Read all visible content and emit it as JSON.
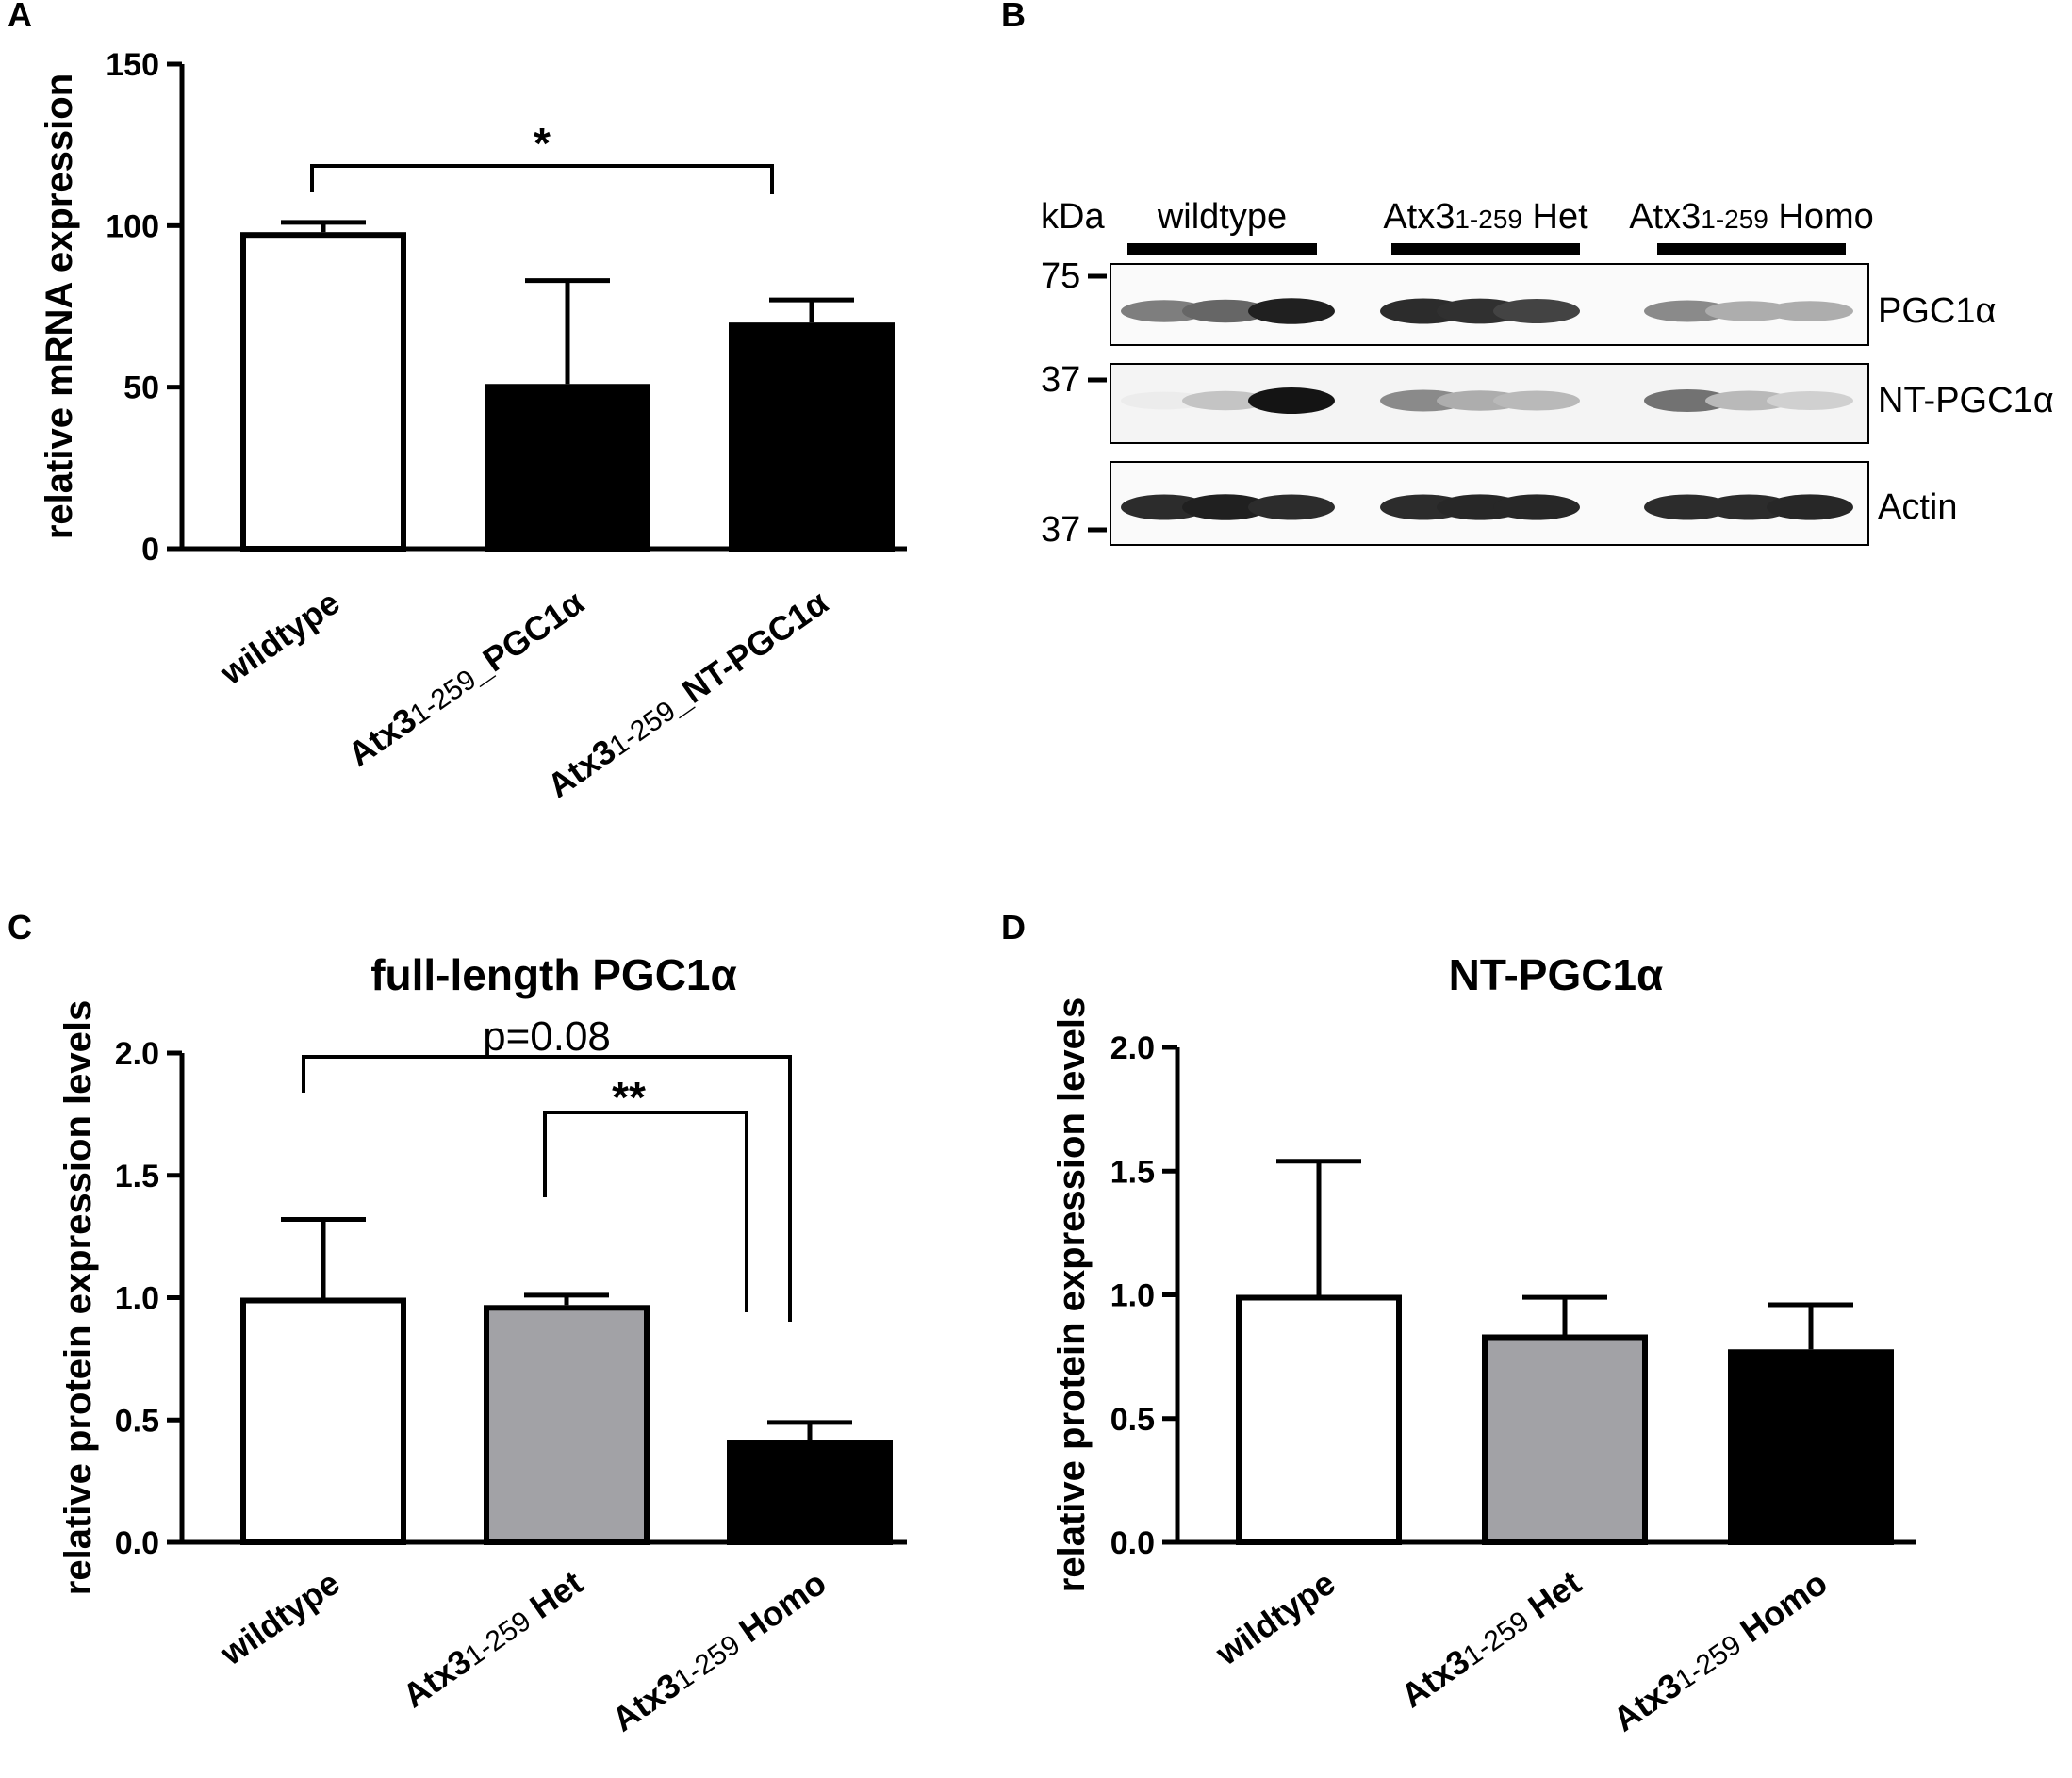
{
  "chart_data": [
    {
      "panel": "A",
      "type": "bar",
      "title": "",
      "ylabel": "relative mRNA expression",
      "ylim": [
        0,
        150
      ],
      "yticks": [
        "0",
        "50",
        "100",
        "150"
      ],
      "categories": [
        {
          "main": "wildtype",
          "sub": "",
          "suffix": ""
        },
        {
          "main": "Atx3",
          "sub": "1-259",
          "suffix": "_PGC1α"
        },
        {
          "main": "Atx3",
          "sub": "1-259",
          "suffix": "_NT-PGC1α"
        }
      ],
      "values": [
        98,
        51,
        70
      ],
      "errors": [
        3,
        32,
        7
      ],
      "fills": [
        "#ffffff",
        "#000000",
        "#000000"
      ],
      "significance": [
        {
          "from": 0,
          "to": 2,
          "label": "*"
        }
      ]
    },
    {
      "panel": "C",
      "type": "bar",
      "title": "full-length PGC1α",
      "ylabel": "relative protein expression levels",
      "ylim": [
        0,
        2.0
      ],
      "yticks": [
        "0.0",
        "0.5",
        "1.0",
        "1.5",
        "2.0"
      ],
      "categories": [
        {
          "main": "wildtype",
          "sub": "",
          "suffix": ""
        },
        {
          "main": "Atx3",
          "sub": "1-259",
          "suffix": " Het"
        },
        {
          "main": "Atx3",
          "sub": "1-259",
          "suffix": " Homo"
        }
      ],
      "values": [
        1.0,
        0.97,
        0.42
      ],
      "errors": [
        0.32,
        0.04,
        0.07
      ],
      "fills": [
        "#ffffff",
        "#a2a2a6",
        "#000000"
      ],
      "significance": [
        {
          "from": 0,
          "to": 2,
          "label": "p=0.08"
        },
        {
          "from": 1,
          "to": 2,
          "label": "**"
        }
      ]
    },
    {
      "panel": "D",
      "type": "bar",
      "title": "NT-PGC1α",
      "ylabel": "relative protein expression levels",
      "ylim": [
        0,
        2.0
      ],
      "yticks": [
        "0.0",
        "0.5",
        "1.0",
        "1.5",
        "2.0"
      ],
      "categories": [
        {
          "main": "wildtype",
          "sub": "",
          "suffix": ""
        },
        {
          "main": "Atx3",
          "sub": "1-259",
          "suffix": " Het"
        },
        {
          "main": "Atx3",
          "sub": "1-259",
          "suffix": " Homo"
        }
      ],
      "values": [
        1.0,
        0.84,
        0.78
      ],
      "errors": [
        0.54,
        0.15,
        0.18
      ],
      "fills": [
        "#ffffff",
        "#a2a2a6",
        "#000000"
      ],
      "significance": []
    }
  ],
  "blot": {
    "panel": "B",
    "kda_label": "kDa",
    "groups": [
      {
        "main": "wildtype",
        "sub": "",
        "suffix": ""
      },
      {
        "main": "Atx3",
        "sub": "1-259",
        "suffix": " Het"
      },
      {
        "main": "Atx3",
        "sub": "1-259",
        "suffix": " Homo"
      }
    ],
    "strips": [
      {
        "label": "PGC1α",
        "marker": "75",
        "intensity": [
          0.55,
          0.65,
          0.95,
          0.9,
          0.88,
          0.8,
          0.5,
          0.35,
          0.35
        ]
      },
      {
        "label": "NT-PGC1α",
        "marker": "37",
        "intensity": [
          0.08,
          0.25,
          1.0,
          0.5,
          0.35,
          0.3,
          0.6,
          0.3,
          0.2
        ]
      },
      {
        "label": "Actin",
        "marker": "37",
        "intensity": [
          0.9,
          0.95,
          0.9,
          0.9,
          0.92,
          0.92,
          0.9,
          0.9,
          0.92
        ]
      }
    ]
  }
}
